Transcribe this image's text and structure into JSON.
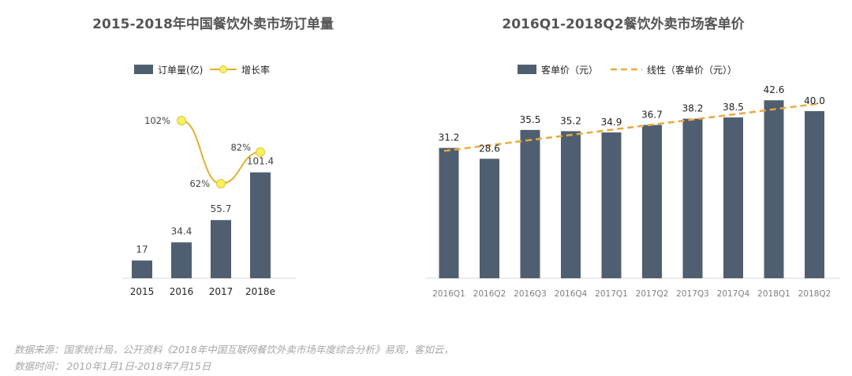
{
  "chart_data": [
    {
      "type": "bar",
      "title": "2015-2018年中国餐饮外卖市场订单量",
      "categories": [
        "2015",
        "2016",
        "2017",
        "2018e"
      ],
      "series": [
        {
          "name": "订单量(亿)",
          "type": "bar",
          "values": [
            17,
            34.4,
            55.7,
            101.4
          ],
          "labels": [
            "17",
            "34.4",
            "55.7",
            "101.4"
          ]
        },
        {
          "name": "增长率",
          "type": "line",
          "values": [
            null,
            102,
            62,
            82
          ],
          "labels": [
            "",
            "102%",
            "62%",
            "82%"
          ],
          "unit": "%"
        }
      ],
      "colors": {
        "bar": "#4f5f71",
        "line": "#e2b02f",
        "marker": "#f3f35c"
      }
    },
    {
      "type": "bar",
      "title": "2016Q1-2018Q2餐饮外卖市场客单价",
      "categories": [
        "2016Q1",
        "2016Q2",
        "2016Q3",
        "2016Q4",
        "2017Q1",
        "2017Q2",
        "2017Q3",
        "2017Q4",
        "2018Q1",
        "2018Q2"
      ],
      "series": [
        {
          "name": "客单价（元）",
          "type": "bar",
          "values": [
            31.2,
            28.6,
            35.5,
            35.2,
            34.9,
            36.7,
            38.2,
            38.5,
            42.6,
            40.0
          ],
          "labels": [
            "31.2",
            "28.6",
            "35.5",
            "35.2",
            "34.9",
            "36.7",
            "38.2",
            "38.5",
            "42.6",
            "40.0"
          ]
        },
        {
          "name": "线性（客单价（元））",
          "type": "trendline",
          "style": "dashed"
        }
      ],
      "colors": {
        "bar": "#4f5f71",
        "trend": "#e9a93c"
      }
    }
  ],
  "source": {
    "line1": "数据来源：国家统计局，公开资料《2018年中国互联网餐饮外卖市场年度综合分析》易观，客如云，",
    "line2": "数据时间： 2010年1月1日-2018年7月15日"
  }
}
